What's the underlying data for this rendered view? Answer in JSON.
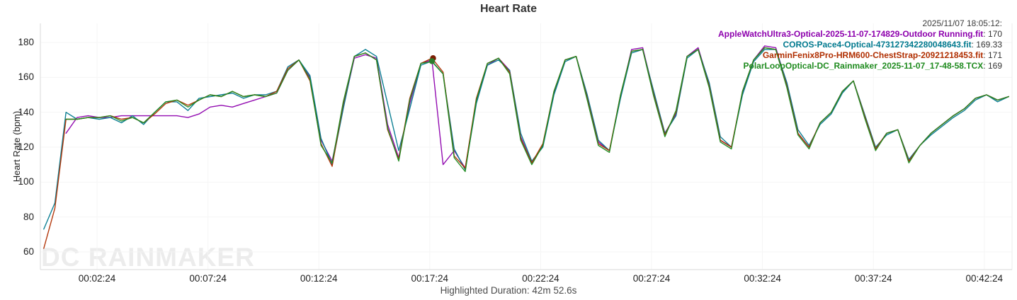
{
  "title": "Heart Rate",
  "y_axis": {
    "label": "Heart Rate (bpm)",
    "ticks": [
      180,
      160,
      140,
      120,
      100,
      80,
      60
    ]
  },
  "x_axis": {
    "tick_labels": [
      "00:02:24",
      "00:07:24",
      "00:12:24",
      "00:17:24",
      "00:22:24",
      "00:27:24",
      "00:32:24",
      "00:37:24",
      "00:42:24"
    ],
    "tick_times_min": [
      2.4,
      7.4,
      12.4,
      17.4,
      22.4,
      27.4,
      32.4,
      37.4,
      42.4
    ]
  },
  "footer": {
    "highlighted_duration": "Highlighted Duration: 42m 52.6s"
  },
  "watermark": "DC RAINMAKER",
  "legend": {
    "timestamp": "2025/11/07 18:05:12:",
    "entries": [
      {
        "name": "AppleWatchUltra3-Optical-2025-11-07-174829-Outdoor Running.fit",
        "value": "170",
        "color": "#8d00ad"
      },
      {
        "name": "COROS-Pace4-Optical-473127342280048643.fit",
        "value": "169.33",
        "color": "#00798e"
      },
      {
        "name": "GarminFenix8Pro-HRM600-ChestStrap-20921218453.fit",
        "value": "171",
        "color": "#b02e00"
      },
      {
        "name": "PolarLoopOptical-DC_Rainmaker_2025-11-07_17-48-58.TCX",
        "value": "169",
        "color": "#1f8b1f"
      }
    ]
  },
  "hover_markers": [
    {
      "time_min": 17.55,
      "bpm": 171,
      "color": "#7b1e04"
    },
    {
      "time_min": 17.5,
      "bpm": 169.3,
      "color": "#2c7d2c"
    }
  ],
  "chart_data": {
    "type": "line",
    "title": "Heart Rate",
    "xlabel": "",
    "ylabel": "Heart Rate (bpm)",
    "ylim": [
      50,
      191
    ],
    "xlim_minutes": [
      -0.15,
      43.66
    ],
    "grid": true,
    "legend_position": "top-right",
    "x_tick_labels": [
      "00:02:24",
      "00:07:24",
      "00:12:24",
      "00:17:24",
      "00:22:24",
      "00:27:24",
      "00:32:24",
      "00:37:24",
      "00:42:24"
    ],
    "x_minutes": [
      0,
      0.5,
      1,
      1.5,
      2,
      2.5,
      3,
      3.5,
      4,
      4.5,
      5,
      5.5,
      6,
      6.5,
      7,
      7.5,
      8,
      8.5,
      9,
      9.5,
      10,
      10.5,
      11,
      11.5,
      12,
      12.5,
      13,
      13.5,
      14,
      14.5,
      15,
      15.5,
      16,
      16.5,
      17,
      17.5,
      18,
      18.5,
      19,
      19.5,
      20,
      20.5,
      21,
      21.5,
      22,
      22.5,
      23,
      23.5,
      24,
      24.5,
      25,
      25.5,
      26,
      26.5,
      27,
      27.5,
      28,
      28.5,
      29,
      29.5,
      30,
      30.5,
      31,
      31.5,
      32,
      32.5,
      33,
      33.5,
      34,
      34.5,
      35,
      35.5,
      36,
      36.5,
      37,
      37.5,
      38,
      38.5,
      39,
      39.5,
      40,
      40.5,
      41,
      41.5,
      42,
      42.5,
      43,
      43.5
    ],
    "series": [
      {
        "name": "AppleWatchUltra3-Optical-2025-11-07-174829-Outdoor Running.fit",
        "color": "#8d00ad",
        "cursor_value": 170,
        "values": [
          null,
          null,
          128,
          137,
          138,
          137,
          137,
          138,
          138,
          138,
          138,
          138,
          138,
          137,
          139,
          143,
          144,
          143,
          145,
          147,
          149,
          151,
          164,
          170,
          160,
          124,
          112,
          143,
          171,
          173,
          171,
          133,
          114,
          145,
          168,
          170,
          110,
          118,
          108,
          146,
          167,
          171,
          164,
          126,
          111,
          121,
          151,
          170,
          172,
          149,
          123,
          118,
          149,
          176,
          177,
          151,
          128,
          139,
          172,
          177,
          156,
          124,
          120,
          151,
          170,
          178,
          177,
          156,
          128,
          120,
          134,
          140,
          152,
          158,
          138,
          119,
          128,
          130,
          112,
          121,
          128,
          133,
          138,
          142,
          148,
          150,
          147,
          149
        ]
      },
      {
        "name": "COROS-Pace4-Optical-473127342280048643.fit",
        "color": "#00798e",
        "cursor_value": 169.33,
        "values": [
          73,
          88,
          140,
          136,
          137,
          136,
          137,
          134,
          138,
          133,
          140,
          146,
          146,
          141,
          148,
          149,
          150,
          151,
          148,
          150,
          150,
          152,
          166,
          170,
          161,
          125,
          110,
          142,
          172,
          176,
          172,
          145,
          118,
          142,
          167,
          169.33,
          162,
          119,
          107,
          145,
          167,
          170,
          164,
          128,
          112,
          120,
          150,
          169,
          172,
          150,
          124,
          118,
          148,
          174,
          176,
          152,
          128,
          138,
          171,
          176,
          157,
          126,
          120,
          150,
          169,
          176,
          176,
          157,
          130,
          121,
          133,
          139,
          151,
          158,
          139,
          120,
          127,
          130,
          113,
          121,
          127,
          132,
          137,
          141,
          147,
          150,
          146,
          149
        ]
      },
      {
        "name": "GarminFenix8Pro-HRM600-ChestStrap-20921218453.fit",
        "color": "#b02e00",
        "cursor_value": 171,
        "values": [
          62,
          85,
          136,
          136,
          137,
          137,
          138,
          136,
          137,
          134,
          139,
          145,
          147,
          144,
          147,
          150,
          149,
          152,
          149,
          150,
          149,
          152,
          165,
          170,
          158,
          122,
          109,
          145,
          172,
          174,
          170,
          130,
          113,
          148,
          168,
          171,
          163,
          115,
          108,
          148,
          168,
          171,
          163,
          125,
          111,
          122,
          152,
          170,
          172,
          148,
          122,
          118,
          150,
          175,
          176,
          150,
          127,
          140,
          172,
          176,
          155,
          124,
          120,
          152,
          170,
          177,
          176,
          155,
          128,
          120,
          134,
          140,
          152,
          158,
          138,
          119,
          128,
          130,
          112,
          121,
          128,
          133,
          138,
          142,
          148,
          150,
          147,
          149
        ]
      },
      {
        "name": "PolarLoopOptical-DC_Rainmaker_2025-11-07_17-48-58.TCX",
        "color": "#1f8b1f",
        "cursor_value": 169,
        "values": [
          null,
          null,
          136,
          136,
          137,
          137,
          138,
          135,
          137,
          134,
          140,
          146,
          147,
          143,
          147,
          150,
          149,
          152,
          149,
          150,
          149,
          151,
          164,
          170,
          159,
          121,
          111,
          146,
          172,
          174,
          170,
          131,
          112,
          147,
          168,
          169,
          162,
          114,
          106,
          147,
          168,
          171,
          162,
          124,
          110,
          121,
          152,
          170,
          172,
          147,
          121,
          117,
          150,
          175,
          176,
          149,
          126,
          141,
          172,
          176,
          154,
          123,
          119,
          152,
          170,
          177,
          176,
          154,
          127,
          119,
          134,
          140,
          152,
          158,
          137,
          118,
          128,
          130,
          111,
          121,
          128,
          133,
          138,
          142,
          148,
          150,
          147,
          149
        ]
      }
    ]
  }
}
